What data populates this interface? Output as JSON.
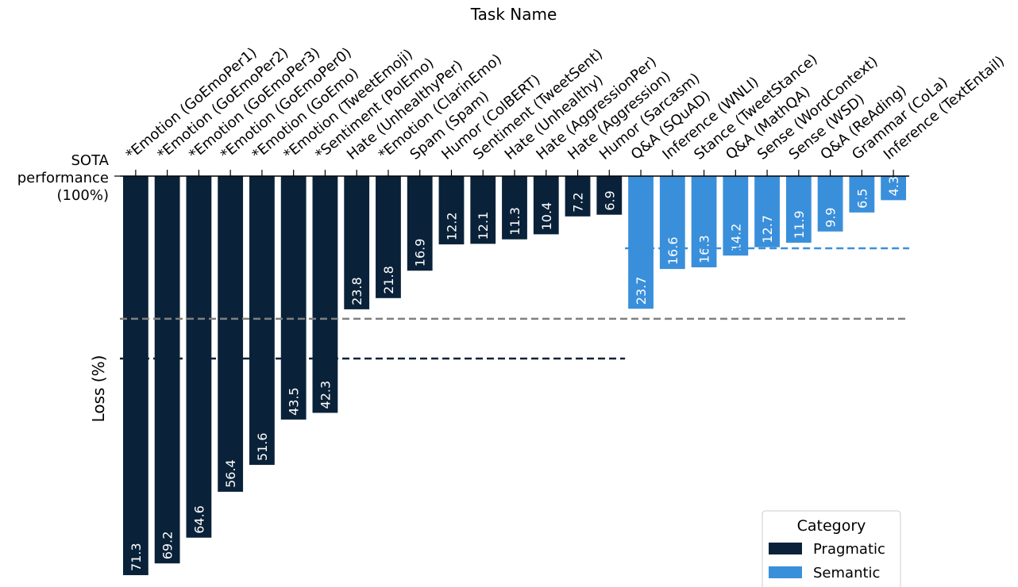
{
  "chart_data": {
    "type": "bar",
    "title": "Task Name",
    "y_label": "Loss (%)",
    "categories": [
      "*Emotion (GoEmoPer1)",
      "*Emotion (GoEmoPer2)",
      "*Emotion (GoEmoPer3)",
      "*Emotion (GoEmoPer0)",
      "*Emotion (GoEmo)",
      "*Emotion (TweetEmoji)",
      "*Sentiment (PolEmo)",
      "Hate (UnhealthyPer)",
      "*Emotion (ClarinEmo)",
      "Spam (Spam)",
      "Humor (ColBERT)",
      "Sentiment (TweetSent)",
      "Hate (Unhealthy)",
      "Hate (AggressionPer)",
      "Hate (Aggression)",
      "Humor (Sarcasm)",
      "Q&A (SQuAD)",
      "Inference (WNLI)",
      "Stance (TweetStance)",
      "Q&A (MathQA)",
      "Sense (WordContext)",
      "Sense (WSD)",
      "Q&A (ReAding)",
      "Grammar (CoLa)",
      "Inference (TextEntail)"
    ],
    "series": [
      {
        "name": "Pragmatic",
        "color": "#0a2239",
        "mean": 32.6,
        "values": [
          71.3,
          69.2,
          64.6,
          56.4,
          51.6,
          43.5,
          42.3,
          23.8,
          21.8,
          16.9,
          12.2,
          12.1,
          11.3,
          10.4,
          7.2,
          6.9,
          null,
          null,
          null,
          null,
          null,
          null,
          null,
          null,
          null
        ]
      },
      {
        "name": "Semantic",
        "color": "#3a8fdb",
        "mean": 12.9,
        "values": [
          null,
          null,
          null,
          null,
          null,
          null,
          null,
          null,
          null,
          null,
          null,
          null,
          null,
          null,
          null,
          null,
          23.7,
          16.6,
          16.3,
          14.2,
          12.7,
          11.9,
          9.9,
          6.5,
          4.3
        ]
      }
    ],
    "mean": 25.5,
    "mean_color": "#808080",
    "ylim": [
      0,
      72
    ],
    "inverted": true,
    "yticks": [
      {
        "value": 0,
        "label": "SOTA performance (100%)"
      }
    ],
    "legend_title": "Category",
    "legend": "lower right"
  }
}
